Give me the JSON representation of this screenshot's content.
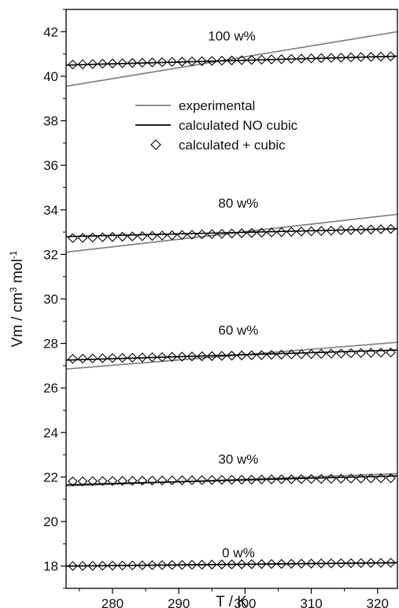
{
  "chart_data": {
    "type": "line",
    "xlabel": "T / K",
    "ylabel": "Vm / cm3 mol-1",
    "ylabel_parts": {
      "main": "Vm / cm",
      "sup1": "3",
      "mid": " mol",
      "sup2": "-1"
    },
    "xlim": [
      273,
      323
    ],
    "ylim": [
      17,
      43
    ],
    "xticks": [
      280,
      290,
      300,
      310,
      320
    ],
    "yticks": [
      18,
      20,
      22,
      24,
      26,
      28,
      30,
      32,
      34,
      36,
      38,
      40,
      42
    ],
    "legend": {
      "placement": "upper-center",
      "entries": [
        {
          "label": "experimental",
          "color": "#808080",
          "style": "line"
        },
        {
          "label": "calculated NO cubic",
          "color": "#000000",
          "style": "line"
        },
        {
          "label": "calculated + cubic",
          "color": "#000000",
          "style": "diamond"
        }
      ]
    },
    "annotations": [
      {
        "text": "100 w%",
        "x": 298,
        "y": 41.6
      },
      {
        "text": "80 w%",
        "x": 299,
        "y": 34.1
      },
      {
        "text": "60 w%",
        "x": 299,
        "y": 28.4
      },
      {
        "text": "30 w%",
        "x": 299,
        "y": 22.6
      },
      {
        "text": "0 w%",
        "x": 299,
        "y": 18.4
      }
    ],
    "series": [
      {
        "name": "experimental",
        "group": "100 w%",
        "color": "#808080",
        "x": [
          273,
          323
        ],
        "y": [
          39.55,
          42.0
        ]
      },
      {
        "name": "calculated NO cubic",
        "group": "100 w%",
        "color": "#000000",
        "x": [
          273,
          323
        ],
        "y": [
          40.5,
          40.9
        ]
      },
      {
        "name": "calculated + cubic",
        "group": "100 w%",
        "color": "#000000",
        "marker": "diamond",
        "x_start": 274,
        "x_step": 1.5,
        "count": 33,
        "y_start": 40.52,
        "y_end": 40.9
      },
      {
        "name": "experimental",
        "group": "80 w%",
        "color": "#808080",
        "x": [
          273,
          323
        ],
        "y": [
          32.1,
          33.8
        ]
      },
      {
        "name": "calculated NO cubic",
        "group": "80 w%",
        "color": "#000000",
        "x": [
          273,
          323
        ],
        "y": [
          32.8,
          33.15
        ]
      },
      {
        "name": "calculated + cubic",
        "group": "80 w%",
        "color": "#000000",
        "marker": "diamond",
        "x_start": 274,
        "x_step": 1.5,
        "count": 33,
        "y_start": 32.72,
        "y_end": 33.15
      },
      {
        "name": "experimental",
        "group": "60 w%",
        "color": "#808080",
        "x": [
          273,
          323
        ],
        "y": [
          26.85,
          28.05
        ]
      },
      {
        "name": "calculated NO cubic",
        "group": "60 w%",
        "color": "#000000",
        "x": [
          273,
          323
        ],
        "y": [
          27.25,
          27.7
        ]
      },
      {
        "name": "calculated + cubic",
        "group": "60 w%",
        "color": "#000000",
        "marker": "diamond",
        "x_start": 274,
        "x_step": 1.5,
        "count": 33,
        "y_start": 27.3,
        "y_end": 27.6
      },
      {
        "name": "experimental",
        "group": "30 w%",
        "color": "#808080",
        "x": [
          273,
          323
        ],
        "y": [
          21.6,
          22.15
        ]
      },
      {
        "name": "calculated NO cubic",
        "group": "30 w%",
        "color": "#000000",
        "x": [
          273,
          323
        ],
        "y": [
          21.65,
          22.05
        ]
      },
      {
        "name": "calculated + cubic",
        "group": "30 w%",
        "color": "#000000",
        "marker": "diamond",
        "x_start": 274,
        "x_step": 1.5,
        "count": 33,
        "y_start": 21.8,
        "y_end": 21.95
      },
      {
        "name": "experimental",
        "group": "0 w%",
        "color": "#808080",
        "x": [
          273,
          323
        ],
        "y": [
          18.0,
          18.15
        ]
      },
      {
        "name": "calculated NO cubic",
        "group": "0 w%",
        "color": "#000000",
        "x": [
          273,
          323
        ],
        "y": [
          18.0,
          18.15
        ]
      },
      {
        "name": "calculated + cubic",
        "group": "0 w%",
        "color": "#000000",
        "marker": "diamond",
        "x_start": 274,
        "x_step": 1.5,
        "count": 33,
        "y_start": 18.0,
        "y_end": 18.15
      }
    ]
  }
}
